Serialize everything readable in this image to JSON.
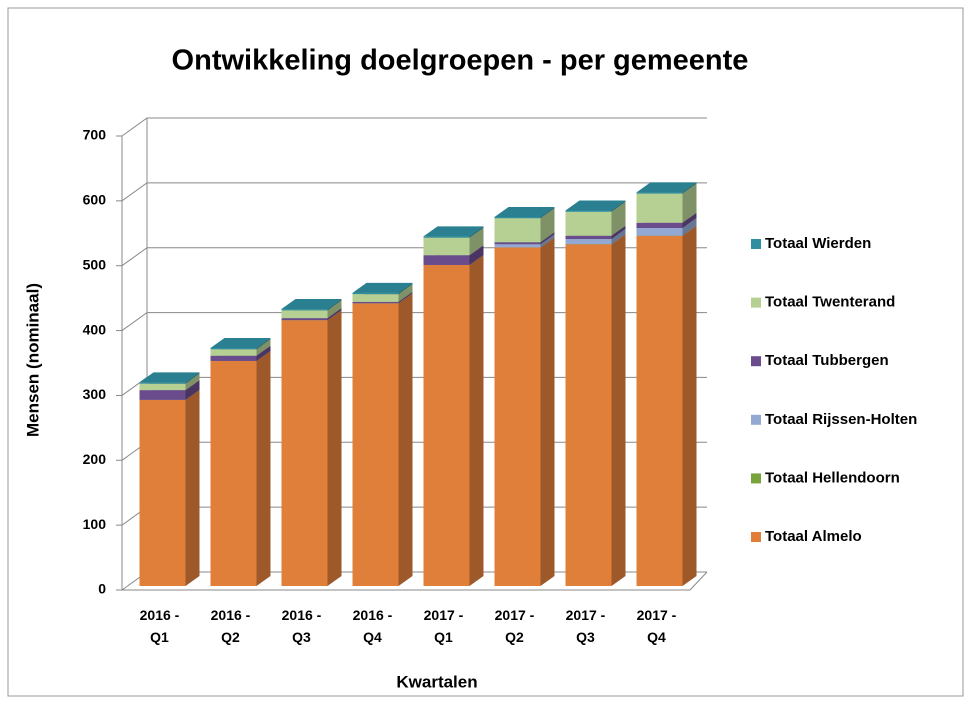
{
  "chart_data": {
    "type": "bar",
    "stacked": true,
    "title": "Ontwikkeling doelgroepen - per gemeente",
    "x_label": "Kwartalen",
    "y_label": "Mensen (nominaal)",
    "categories": [
      "2016 - Q1",
      "2016 - Q2",
      "2016 - Q3",
      "2016 - Q4",
      "2017 - Q1",
      "2017 - Q2",
      "2017 - Q3",
      "2017 - Q4"
    ],
    "series": [
      {
        "name": "Totaal Almelo",
        "color": "#e07f3a",
        "values": [
          287,
          347,
          410,
          436,
          495,
          522,
          527,
          540
        ]
      },
      {
        "name": "Totaal Hellendoorn",
        "color": "#77a33b",
        "values": [
          0,
          0,
          0,
          0,
          0,
          0,
          0,
          0
        ]
      },
      {
        "name": "Totaal Rijssen-Holten",
        "color": "#93a9d1",
        "values": [
          0,
          0,
          0,
          0,
          0,
          5,
          8,
          12
        ]
      },
      {
        "name": "Totaal Tubbergen",
        "color": "#6a4c8c",
        "values": [
          15,
          8,
          3,
          2,
          15,
          3,
          5,
          8
        ]
      },
      {
        "name": "Totaal Twenterand",
        "color": "#b6cf93",
        "values": [
          10,
          10,
          12,
          12,
          27,
          37,
          37,
          45
        ]
      },
      {
        "name": "Totaal Wierden",
        "color": "#2f8ea0",
        "values": [
          2,
          2,
          2,
          2,
          2,
          2,
          2,
          2
        ]
      }
    ],
    "ylim": [
      0,
      700
    ],
    "yticks": [
      0,
      100,
      200,
      300,
      400,
      500,
      600,
      700
    ],
    "grid": true,
    "legend": "right"
  }
}
